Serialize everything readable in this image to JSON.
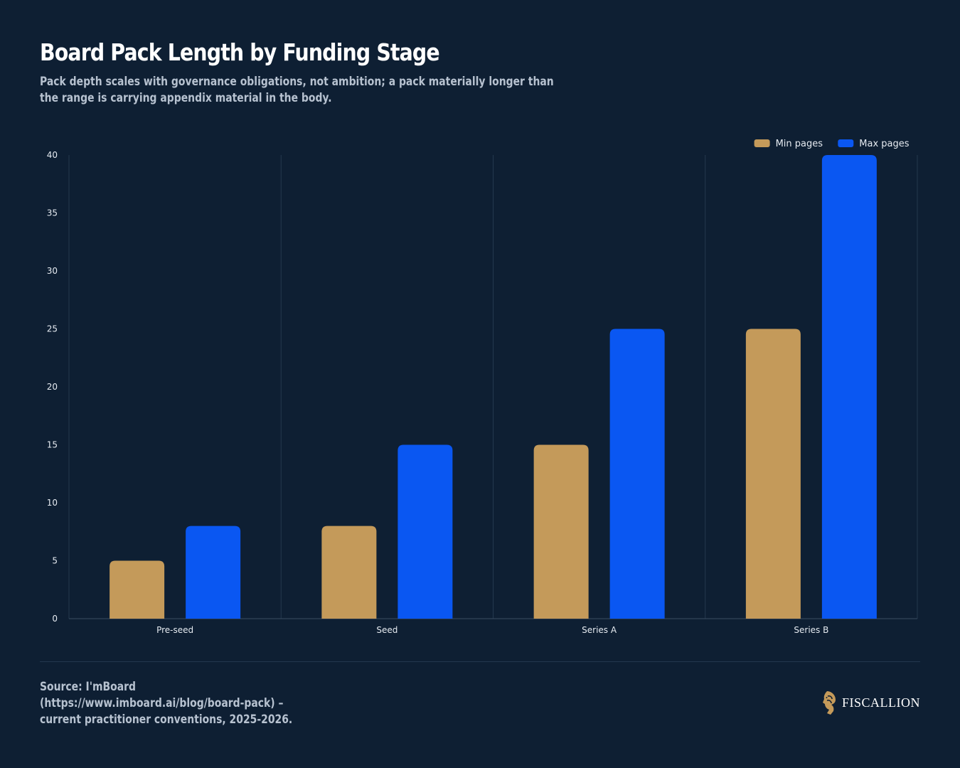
{
  "header": {
    "title": "Board Pack Length by Funding Stage",
    "subtitle": "Pack depth scales with governance obligations, not ambition; a pack materially longer than the range is carrying appendix material in the body."
  },
  "footer": {
    "source": "Source: I'mBoard (https://www.imboard.ai/blog/board-pack) – current practitioner conventions, 2025-2026.",
    "brand": "FISCALLION"
  },
  "colors": {
    "background": "#0e1f33",
    "min": "#c49a5a",
    "max": "#0a57f2",
    "grid": "#24384e",
    "brand_gold": "#c49a5a"
  },
  "icons": {
    "brand": "horse-head-logo-icon"
  },
  "chart_data": {
    "type": "bar",
    "title": "Board Pack Length by Funding Stage",
    "xlabel": "",
    "ylabel": "",
    "categories": [
      "Pre-seed",
      "Seed",
      "Series A",
      "Series B"
    ],
    "series": [
      {
        "name": "Min pages",
        "values": [
          5,
          8,
          15,
          25
        ],
        "color": "#c49a5a"
      },
      {
        "name": "Max pages",
        "values": [
          8,
          15,
          25,
          40
        ],
        "color": "#0a57f2"
      }
    ],
    "ylim": [
      0,
      40
    ],
    "yticks": [
      0,
      5,
      10,
      15,
      20,
      25,
      30,
      35,
      40
    ],
    "grid": "vertical separators between categories",
    "legend": "top-right"
  }
}
